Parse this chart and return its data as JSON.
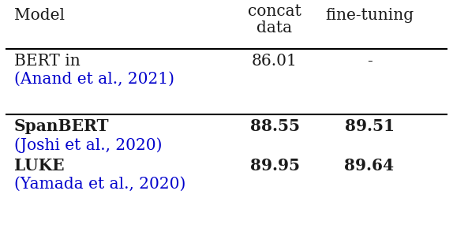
{
  "header": [
    "Model",
    "concat\ndata",
    "fine-tuning"
  ],
  "rows": [
    {
      "model_main": "BERT in",
      "model_cite": "(Anand et al., 2021)",
      "concat": "86.01",
      "finetuning": "-",
      "bold_concat": false,
      "bold_finetuning": false
    },
    {
      "model_main": "SpanBERT",
      "model_cite": "(Joshi et al., 2020)",
      "concat": "88.55",
      "finetuning": "89.51",
      "bold_concat": true,
      "bold_finetuning": true
    },
    {
      "model_main": "LUKE",
      "model_cite": "(Yamada et al., 2020)",
      "concat": "89.95",
      "finetuning": "89.64",
      "bold_concat": true,
      "bold_finetuning": true
    }
  ],
  "bg_color": "#ffffff",
  "text_color_black": "#1a1a1a",
  "text_color_blue": "#0000cc",
  "line_color": "#000000",
  "fig_width": 5.74,
  "fig_height": 3.08,
  "dpi": 100
}
